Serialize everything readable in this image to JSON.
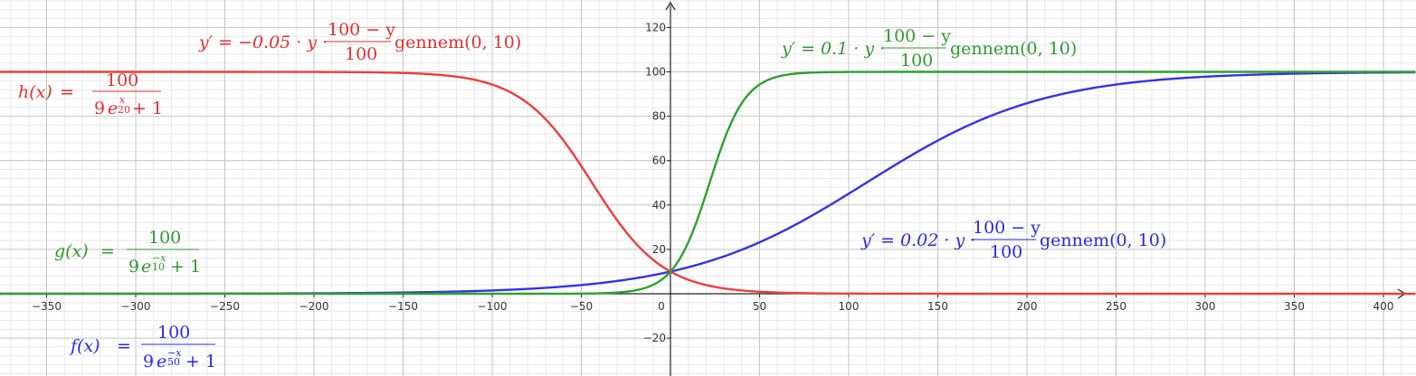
{
  "chart_data": {
    "type": "line",
    "title": "",
    "xlabel": "",
    "ylabel": "",
    "xlim": [
      -385,
      410
    ],
    "ylim": [
      -38,
      131
    ],
    "grid": true,
    "x_ticks": [
      "−350",
      "−300",
      "−250",
      "−200",
      "−150",
      "−100",
      "−50",
      "0",
      "50",
      "100",
      "150",
      "200",
      "250",
      "300",
      "350",
      "400"
    ],
    "y_ticks": [
      "−20",
      "20",
      "40",
      "60",
      "80",
      "100",
      "120"
    ],
    "series": [
      {
        "id": "f",
        "color": "#3333e6",
        "k": 0.02,
        "start": [
          0,
          10
        ]
      },
      {
        "id": "g",
        "color": "#2ea12e",
        "k": 0.1,
        "start": [
          0,
          10
        ]
      },
      {
        "id": "h",
        "color": "#f03c3c",
        "k": -0.05,
        "start": [
          0,
          10
        ]
      }
    ],
    "annotations": {
      "h_formula": {
        "lhs": "h(x)",
        "eq": "=",
        "num": "100",
        "den_a": "9",
        "den_e": "e",
        "exp_top": "x",
        "exp_bot": "20",
        "den_b": "+ 1"
      },
      "g_formula": {
        "lhs": "g(x)",
        "eq": "=",
        "num": "100",
        "den_a": "9",
        "den_e": "e",
        "exp_top": "−x",
        "exp_bot": "10",
        "den_b": "+ 1"
      },
      "f_formula": {
        "lhs": "f(x)",
        "eq": "=",
        "num": "100",
        "den_a": "9",
        "den_e": "e",
        "exp_top": "−x",
        "exp_bot": "50",
        "den_b": "+ 1"
      },
      "h_ode": {
        "lhs": "y′ = −0.05 · y ·",
        "num": "100 − y",
        "den": "100",
        "tail": "gennem(0, 10)"
      },
      "g_ode": {
        "lhs": "y′ = 0.1 · y ·",
        "num": "100 − y",
        "den": "100",
        "tail": "gennem(0, 10)"
      },
      "f_ode": {
        "lhs": "y′ = 0.02 · y ·",
        "num": "100 − y",
        "den": "100",
        "tail": "gennem(0, 10)"
      }
    }
  }
}
